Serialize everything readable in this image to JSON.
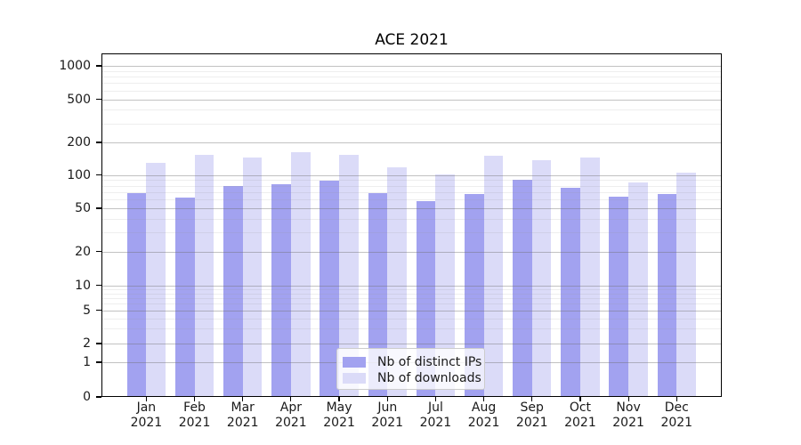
{
  "chart_data": {
    "type": "bar",
    "title": "ACE 2021",
    "categories": [
      "Jan",
      "Feb",
      "Mar",
      "Apr",
      "May",
      "Jun",
      "Jul",
      "Aug",
      "Sep",
      "Oct",
      "Nov",
      "Dec"
    ],
    "year_label": "2021",
    "series": [
      {
        "name": "Nb of distinct IPs",
        "color": "#a2a2f0",
        "values": [
          68,
          63,
          79,
          83,
          89,
          68,
          58,
          67,
          91,
          76,
          64,
          67
        ]
      },
      {
        "name": "Nb of downloads",
        "color": "#dbdbf8",
        "values": [
          130,
          153,
          145,
          162,
          154,
          118,
          102,
          151,
          136,
          146,
          86,
          105
        ]
      }
    ],
    "yticks": [
      0,
      1,
      2,
      5,
      10,
      20,
      50,
      100,
      200,
      500,
      1000
    ],
    "ylabel": "",
    "xlabel": "",
    "yscale": "symlog",
    "grid": "on",
    "legend_position": "lower center"
  }
}
